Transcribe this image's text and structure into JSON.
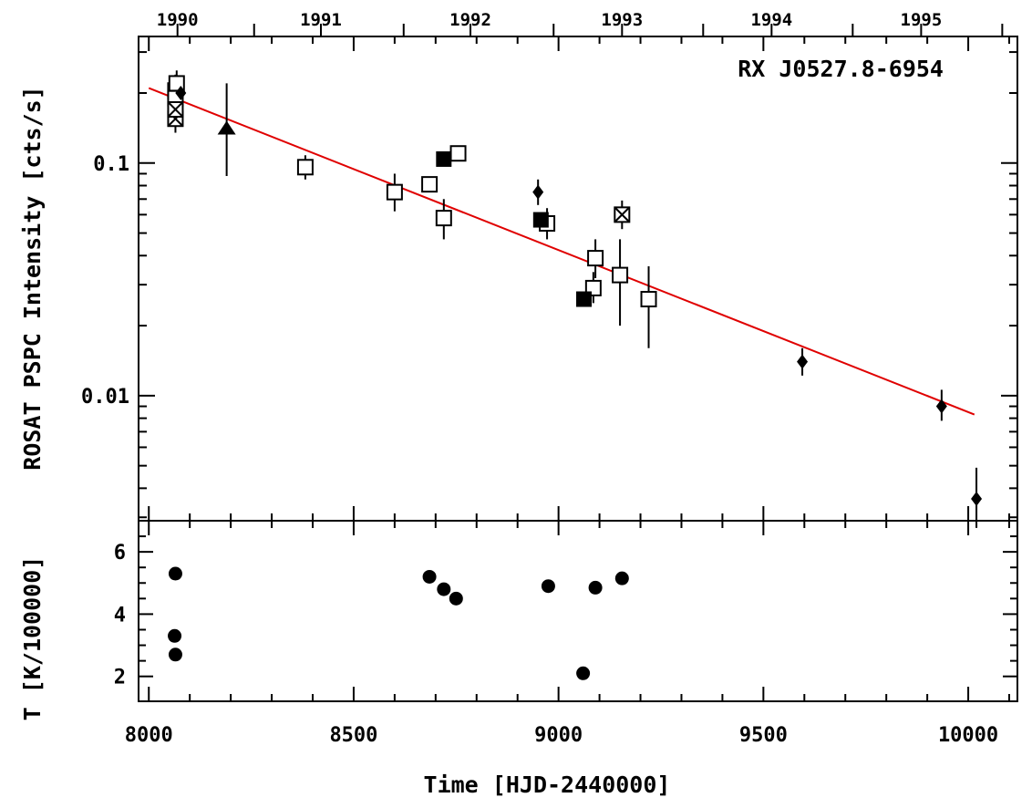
{
  "chart_data": {
    "type": "scatter",
    "annotation": "RX J0527.8-6954",
    "xlabel": "Time [HJD-2440000]",
    "xlim": [
      7975,
      10120
    ],
    "x_ticks": [
      8000,
      8500,
      9000,
      9500,
      10000
    ],
    "top_axis": {
      "ticks": [
        {
          "label": "1990",
          "x": 8070
        },
        {
          "label": "1991",
          "x": 8420
        },
        {
          "label": "1992",
          "x": 8785
        },
        {
          "label": "1993",
          "x": 9155
        },
        {
          "label": "1994",
          "x": 9520
        },
        {
          "label": "1995",
          "x": 9885
        }
      ],
      "minor_x": [
        8257,
        8622,
        8988,
        9353,
        9718,
        10083
      ]
    },
    "panels": [
      {
        "id": "intensity",
        "ylabel": "ROSAT PSPC Intensity [cts/s]",
        "yscale": "log",
        "ylim": [
          0.0029,
          0.35
        ],
        "y_ticks": [
          {
            "value": 0.1,
            "label": "0.1"
          },
          {
            "value": 0.01,
            "label": "0.01"
          }
        ],
        "fit_line": {
          "x": [
            8000,
            10015
          ],
          "y": [
            0.21,
            0.0083
          ],
          "color": "#e00000"
        },
        "series": [
          {
            "marker": "open-square",
            "points": [
              {
                "x": 8065,
                "y": 0.205,
                "ylo": 0.175,
                "yhi": 0.24
              },
              {
                "x": 8065,
                "y": 0.19
              },
              {
                "x": 8068,
                "y": 0.22,
                "ylo": 0.19,
                "yhi": 0.25
              },
              {
                "x": 8382,
                "y": 0.096,
                "ylo": 0.085,
                "yhi": 0.108
              },
              {
                "x": 8600,
                "y": 0.075,
                "ylo": 0.062,
                "yhi": 0.09
              },
              {
                "x": 8685,
                "y": 0.081
              },
              {
                "x": 8720,
                "y": 0.058,
                "ylo": 0.047,
                "yhi": 0.07
              },
              {
                "x": 8755,
                "y": 0.11
              },
              {
                "x": 8972,
                "y": 0.055,
                "ylo": 0.047,
                "yhi": 0.064
              },
              {
                "x": 9085,
                "y": 0.029,
                "ylo": 0.025,
                "yhi": 0.034
              },
              {
                "x": 9090,
                "y": 0.039,
                "ylo": 0.032,
                "yhi": 0.047
              },
              {
                "x": 9150,
                "y": 0.033,
                "ylo": 0.02,
                "yhi": 0.047
              },
              {
                "x": 9220,
                "y": 0.026,
                "ylo": 0.016,
                "yhi": 0.036
              }
            ]
          },
          {
            "marker": "crossed-square",
            "points": [
              {
                "x": 8065,
                "y": 0.155,
                "ylo": 0.135,
                "yhi": 0.175
              },
              {
                "x": 8065,
                "y": 0.17
              },
              {
                "x": 9155,
                "y": 0.06,
                "ylo": 0.052,
                "yhi": 0.069
              }
            ]
          },
          {
            "marker": "filled-square",
            "points": [
              {
                "x": 8720,
                "y": 0.104
              },
              {
                "x": 8957,
                "y": 0.057
              },
              {
                "x": 9062,
                "y": 0.026
              }
            ]
          },
          {
            "marker": "filled-diamond",
            "points": [
              {
                "x": 8078,
                "y": 0.2,
                "ylo": 0.19,
                "yhi": 0.21
              },
              {
                "x": 8950,
                "y": 0.075,
                "ylo": 0.066,
                "yhi": 0.085
              },
              {
                "x": 9595,
                "y": 0.014,
                "ylo": 0.0122,
                "yhi": 0.016
              },
              {
                "x": 9935,
                "y": 0.009,
                "ylo": 0.0078,
                "yhi": 0.0106
              },
              {
                "x": 10020,
                "y": 0.0036,
                "ylo": 0.0027,
                "yhi": 0.0049
              }
            ]
          },
          {
            "marker": "filled-triangle",
            "points": [
              {
                "x": 8190,
                "y": 0.14,
                "ylo": 0.088,
                "yhi": 0.22
              }
            ]
          }
        ]
      },
      {
        "id": "temperature",
        "ylabel": "T [K/100000]",
        "yscale": "linear",
        "ylim": [
          1.2,
          7.0
        ],
        "y_ticks": [
          {
            "value": 2,
            "label": "2"
          },
          {
            "value": 4,
            "label": "4"
          },
          {
            "value": 6,
            "label": "6"
          }
        ],
        "series": [
          {
            "marker": "filled-circle",
            "points": [
              {
                "x": 8065,
                "y": 5.3
              },
              {
                "x": 8063,
                "y": 3.3
              },
              {
                "x": 8065,
                "y": 2.7
              },
              {
                "x": 8685,
                "y": 5.2
              },
              {
                "x": 8720,
                "y": 4.8
              },
              {
                "x": 8750,
                "y": 4.5
              },
              {
                "x": 8975,
                "y": 4.9
              },
              {
                "x": 9060,
                "y": 2.1
              },
              {
                "x": 9090,
                "y": 4.85
              },
              {
                "x": 9155,
                "y": 5.15
              }
            ]
          }
        ]
      }
    ]
  }
}
